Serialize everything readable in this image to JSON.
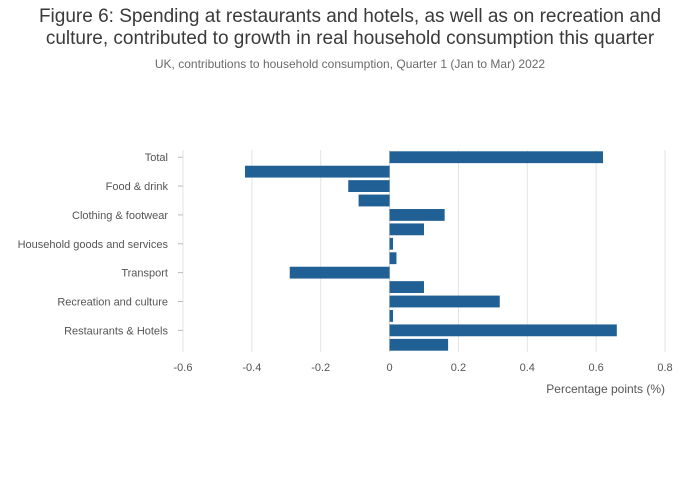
{
  "chart_data": {
    "type": "bar",
    "orientation": "horizontal",
    "title_line1": "Figure 6: Spending at restaurants and hotels, as well as on recreation and",
    "title_line2": "culture, contributed to growth in real household consumption this quarter",
    "subtitle": "UK, contributions to household consumption, Quarter 1 (Jan to Mar) 2022",
    "xlabel": "Percentage points (%)",
    "ylabel": "",
    "xlim": [
      -0.6,
      0.8
    ],
    "xticks": [
      {
        "value": -0.6,
        "label": "-0.6"
      },
      {
        "value": -0.4,
        "label": "-0.4"
      },
      {
        "value": -0.2,
        "label": "-0.2"
      },
      {
        "value": 0,
        "label": "0"
      },
      {
        "value": 0.2,
        "label": "0.2"
      },
      {
        "value": 0.4,
        "label": "0.4"
      },
      {
        "value": 0.6,
        "label": "0.6"
      },
      {
        "value": 0.8,
        "label": "0.8"
      }
    ],
    "categories": [
      "Total",
      "",
      "Food & drink",
      "",
      "Clothing & footwear",
      "",
      "Household goods and services",
      "",
      "Transport",
      "",
      "Recreation and culture",
      "",
      "Restaurants & Hotels",
      ""
    ],
    "values": [
      0.62,
      -0.42,
      -0.12,
      -0.09,
      0.16,
      0.1,
      0.01,
      0.02,
      -0.29,
      0.1,
      0.32,
      0.01,
      0.66,
      0.17
    ],
    "bar_color": "#206095",
    "grid": true
  }
}
